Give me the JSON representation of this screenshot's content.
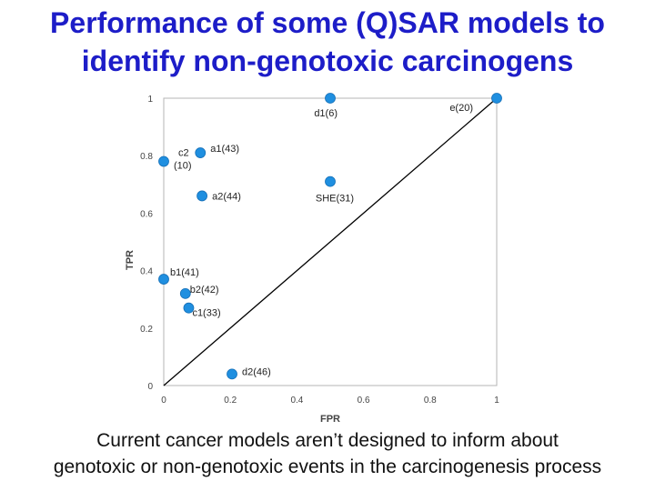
{
  "title_line1": "Performance of some (Q)SAR models to",
  "title_line2": "identify non-genotoxic carcinogens",
  "caption_line1": "Current cancer models aren’t designed to inform about",
  "caption_line2": "genotoxic or non-genotoxic events in the carcinogenesis process",
  "chart_data": {
    "type": "scatter",
    "xlabel": "FPR",
    "ylabel": "TPR",
    "xlim": [
      0,
      1
    ],
    "ylim": [
      0,
      1
    ],
    "xticks": [
      "0",
      "0.2",
      "0.4",
      "0.6",
      "0.8",
      "1"
    ],
    "yticks": [
      "0",
      "0.2",
      "0.4",
      "0.6",
      "0.8",
      "1"
    ],
    "grid": false,
    "diagonal_line": true,
    "marker_color": "#1f8fe0",
    "points": [
      {
        "label": "d1(6)",
        "x": 0.5,
        "y": 1.0
      },
      {
        "label": "e(20)",
        "x": 1.0,
        "y": 1.0
      },
      {
        "label": "a1(43)",
        "x": 0.11,
        "y": 0.81
      },
      {
        "label": "c2 (10)",
        "x": 0.0,
        "y": 0.78
      },
      {
        "label": "a2(44)",
        "x": 0.115,
        "y": 0.66
      },
      {
        "label": "SHE(31)",
        "x": 0.5,
        "y": 0.71
      },
      {
        "label": "b1(41)",
        "x": 0.0,
        "y": 0.37
      },
      {
        "label": "b2(42)",
        "x": 0.065,
        "y": 0.32
      },
      {
        "label": "c1(33)",
        "x": 0.075,
        "y": 0.27
      },
      {
        "label": "d2(46)",
        "x": 0.205,
        "y": 0.04
      }
    ]
  }
}
